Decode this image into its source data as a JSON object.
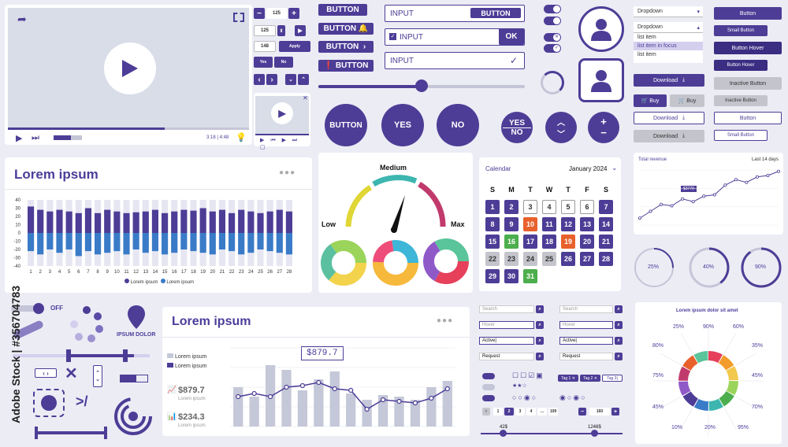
{
  "watermark": {
    "vertical": "Adobe Stock | #356704783"
  },
  "video_player": {
    "time": "3:18 | 4:48"
  },
  "steppers": {
    "v1": "125",
    "v2": "125",
    "v3": "148",
    "apply": "Apply",
    "yes": "Yes",
    "no": "No"
  },
  "buttons_left": {
    "b1": "BUTTON",
    "b2": "BUTTON",
    "b3": "BUTTON",
    "b4": "BUTTON"
  },
  "inputs": {
    "i1": "INPUT",
    "i1_btn": "BUTTON",
    "i2": "INPUT",
    "i2_btn": "OK",
    "i3": "INPUT"
  },
  "round_buttons": {
    "button": "BUTTON",
    "yes": "YES",
    "no": "NO",
    "yes2": "YES",
    "no2": "NO"
  },
  "dropdowns": {
    "d1": "Dropdown",
    "d2": "Dropdown",
    "items": [
      "list item",
      "list item in focus",
      "list item"
    ]
  },
  "right_buttons": [
    "Button",
    "Small Button",
    "Button Hover",
    "Button Hover",
    "Inactive Button",
    "Inactive Button",
    "Button",
    "Small Button"
  ],
  "action_buttons": {
    "download": "Download",
    "buy": "Buy"
  },
  "bar_chart_1": {
    "title": "Lorem ipsum",
    "legend": [
      "Lorem ipsum",
      "Lorem ipsum"
    ]
  },
  "gauge": {
    "medium": "Medium",
    "low": "Low",
    "max": "Max"
  },
  "calendar": {
    "label": "Calendar",
    "month": "January 2024",
    "weekdays": [
      "S",
      "M",
      "T",
      "W",
      "T",
      "F",
      "S"
    ],
    "days": [
      [
        "1",
        "2",
        "3",
        "4",
        "5",
        "6",
        "7"
      ],
      [
        "8",
        "9",
        "10",
        "11",
        "12",
        "13",
        "14"
      ],
      [
        "15",
        "16",
        "17",
        "18",
        "19",
        "20",
        "21"
      ],
      [
        "22",
        "23",
        "24",
        "25",
        "26",
        "27",
        "28"
      ],
      [
        "29",
        "30",
        "31"
      ]
    ]
  },
  "line_chart_small": {
    "title": "Total revenue",
    "range": "Last 14 days",
    "tooltip": "$3770"
  },
  "progress_rings": {
    "p1": "25%",
    "p2": "40%",
    "p3": "90%"
  },
  "controls": {
    "off": "OFF",
    "ipsum": "IPSUM DOLOR"
  },
  "combo_chart": {
    "title": "Lorem ipsum",
    "legend": [
      "Lorem ipsum",
      "Lorem ipsum"
    ],
    "callout": "$879.7",
    "stat1": "$879.7",
    "stat1_sub": "Lorem ipsum",
    "stat2": "$234.3",
    "stat2_sub": "Lorem ipsum"
  },
  "search_fields": {
    "search": "Search",
    "hover": "Hover",
    "active": "Active|",
    "request": "Request"
  },
  "tags": {
    "t1": "Tag 1",
    "t2": "Tag 2",
    "t3": "Tag 3|"
  },
  "pagination": {
    "pages": [
      "1",
      "2",
      "3",
      "4",
      "...",
      "109"
    ],
    "stepper": "160"
  },
  "range_slider": {
    "min": "42$",
    "max": "1246$"
  },
  "radial_infographic": {
    "title": "Lorem ipsum dolor sit amet",
    "percents": [
      "25%",
      "90%",
      "60%",
      "35%",
      "45%",
      "70%",
      "95%",
      "20%",
      "10%",
      "45%",
      "75%",
      "80%"
    ]
  },
  "chart_data": [
    {
      "type": "bar",
      "title": "Lorem ipsum",
      "categories": [
        "1",
        "2",
        "3",
        "4",
        "5",
        "6",
        "7",
        "8",
        "9",
        "10",
        "11",
        "12",
        "13",
        "14",
        "15",
        "16",
        "17",
        "18",
        "19",
        "20",
        "21",
        "22",
        "23",
        "24",
        "25",
        "26",
        "27",
        "28"
      ],
      "ylim": [
        -40,
        40
      ],
      "ticks": [
        40,
        30,
        20,
        10,
        0,
        -10,
        -20,
        -30,
        -40
      ],
      "series": [
        {
          "name": "Lorem ipsum",
          "values": [
            32,
            28,
            26,
            28,
            26,
            24,
            30,
            24,
            28,
            26,
            24,
            25,
            26,
            28,
            24,
            26,
            28,
            27,
            30,
            26,
            28,
            24,
            28,
            26,
            24,
            26,
            28,
            26
          ]
        },
        {
          "name": "Lorem ipsum",
          "values": [
            -22,
            -26,
            -20,
            -24,
            -20,
            -28,
            -22,
            -26,
            -24,
            -22,
            -26,
            -20,
            -24,
            -22,
            -26,
            -24,
            -20,
            -22,
            -24,
            -26,
            -20,
            -22,
            -26,
            -24,
            -20,
            -22,
            -24,
            -26
          ]
        }
      ]
    },
    {
      "type": "line",
      "title": "Total revenue",
      "values": [
        10,
        20,
        30,
        28,
        38,
        34,
        42,
        44,
        58,
        66,
        62,
        70,
        72,
        78
      ]
    },
    {
      "type": "bar",
      "title": "Lorem ipsum",
      "values": [
        50,
        38,
        78,
        72,
        46,
        60,
        70,
        42,
        34,
        40,
        38,
        34,
        50,
        58
      ],
      "line": [
        38,
        42,
        38,
        50,
        52,
        56,
        48,
        46,
        22,
        34,
        32,
        30,
        36,
        48
      ]
    }
  ]
}
